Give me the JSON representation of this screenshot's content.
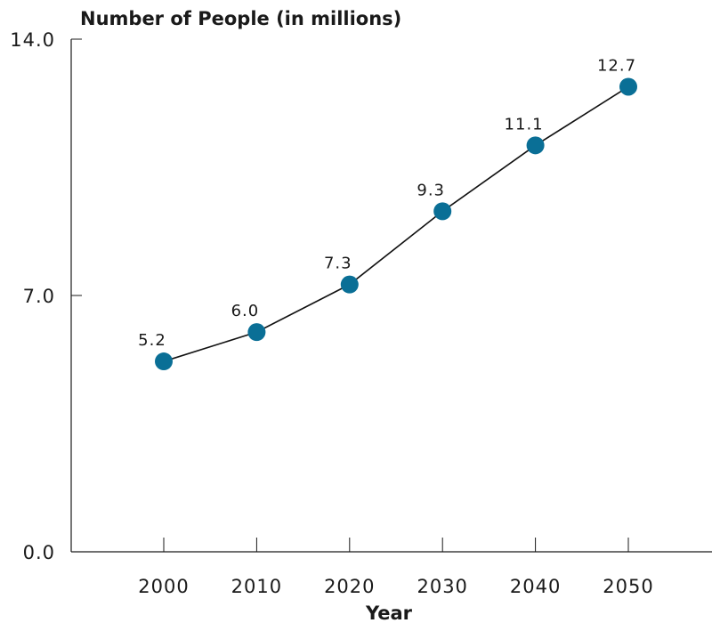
{
  "chart_data": {
    "type": "line",
    "ylabel": "Number of People (in millions)",
    "xlabel": "Year",
    "categories": [
      "2000",
      "2010",
      "2020",
      "2030",
      "2040",
      "2050"
    ],
    "values": [
      5.2,
      6.0,
      7.3,
      9.3,
      11.1,
      12.7
    ],
    "value_labels": [
      "5.2",
      "6.0",
      "7.3",
      "9.3",
      "11.1",
      "12.7"
    ],
    "ylim": [
      0,
      14
    ],
    "yticks": [
      0,
      7,
      14
    ],
    "ytick_labels": [
      "0.0",
      "7.0",
      "14.0"
    ],
    "grid": false,
    "marker_color": "#0a6f96",
    "line_color": "#111111"
  }
}
